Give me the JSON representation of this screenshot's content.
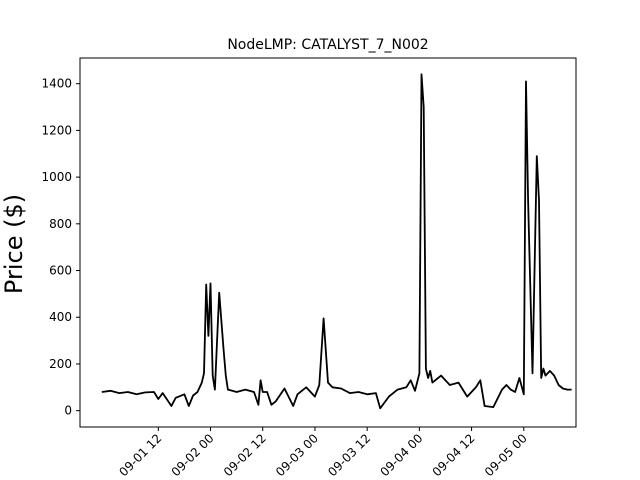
{
  "chart_data": {
    "type": "line",
    "title": "NodeLMP: CATALYST_7_N002",
    "xlabel": "",
    "ylabel": "Price ($)",
    "x_axis": "datetime",
    "xlim": [
      "2021-08-31T18:00",
      "2021-09-05T12:00"
    ],
    "ylim": [
      -70,
      1510
    ],
    "x_tick_labels": [
      "09-01 12",
      "09-02 00",
      "09-02 12",
      "09-03 00",
      "09-03 12",
      "09-04 00",
      "09-04 12",
      "09-05 00"
    ],
    "y_ticks": [
      0,
      200,
      400,
      600,
      800,
      1000,
      1200,
      1400
    ],
    "grid": false,
    "legend": "none",
    "line_color": "#000000",
    "series": [
      {
        "x": [
          "2021-08-31T23:00",
          "2021-09-01T01:00",
          "2021-09-01T03:00",
          "2021-09-01T05:00",
          "2021-09-01T07:00",
          "2021-09-01T09:00",
          "2021-09-01T11:00",
          "2021-09-01T12:00",
          "2021-09-01T13:00",
          "2021-09-01T15:00",
          "2021-09-01T16:00",
          "2021-09-01T18:00",
          "2021-09-01T19:00",
          "2021-09-01T20:00",
          "2021-09-01T21:00",
          "2021-09-01T22:00",
          "2021-09-01T22:30",
          "2021-09-01T23:00",
          "2021-09-01T23:30",
          "2021-09-02T00:00",
          "2021-09-02T00:30",
          "2021-09-02T01:00",
          "2021-09-02T02:00",
          "2021-09-02T03:00",
          "2021-09-02T03:30",
          "2021-09-02T04:00",
          "2021-09-02T05:00",
          "2021-09-02T06:00",
          "2021-09-02T08:00",
          "2021-09-02T10:00",
          "2021-09-02T11:00",
          "2021-09-02T11:30",
          "2021-09-02T12:00",
          "2021-09-02T13:00",
          "2021-09-02T14:00",
          "2021-09-02T15:00",
          "2021-09-02T17:00",
          "2021-09-02T19:00",
          "2021-09-02T20:00",
          "2021-09-02T22:00",
          "2021-09-03T00:00",
          "2021-09-03T01:00",
          "2021-09-03T02:00",
          "2021-09-03T03:00",
          "2021-09-03T04:00",
          "2021-09-03T06:00",
          "2021-09-03T08:00",
          "2021-09-03T10:00",
          "2021-09-03T12:00",
          "2021-09-03T14:00",
          "2021-09-03T15:00",
          "2021-09-03T17:00",
          "2021-09-03T19:00",
          "2021-09-03T21:00",
          "2021-09-03T22:00",
          "2021-09-03T23:00",
          "2021-09-04T00:00",
          "2021-09-04T00:30",
          "2021-09-04T01:00",
          "2021-09-04T01:30",
          "2021-09-04T02:00",
          "2021-09-04T02:30",
          "2021-09-04T03:00",
          "2021-09-04T05:00",
          "2021-09-04T07:00",
          "2021-09-04T09:00",
          "2021-09-04T11:00",
          "2021-09-04T13:00",
          "2021-09-04T14:00",
          "2021-09-04T15:00",
          "2021-09-04T17:00",
          "2021-09-04T19:00",
          "2021-09-04T20:00",
          "2021-09-04T21:00",
          "2021-09-04T22:00",
          "2021-09-04T23:00",
          "2021-09-05T00:00",
          "2021-09-05T00:30",
          "2021-09-05T01:00",
          "2021-09-05T02:00",
          "2021-09-05T03:00",
          "2021-09-05T03:30",
          "2021-09-05T04:00",
          "2021-09-05T04:30",
          "2021-09-05T05:00",
          "2021-09-05T06:00",
          "2021-09-05T07:00",
          "2021-09-05T08:00",
          "2021-09-05T09:00",
          "2021-09-05T10:00",
          "2021-09-05T11:00"
        ],
        "values": [
          80,
          85,
          75,
          80,
          70,
          78,
          80,
          50,
          75,
          20,
          55,
          70,
          20,
          65,
          80,
          120,
          160,
          540,
          320,
          545,
          150,
          90,
          505,
          260,
          150,
          90,
          85,
          80,
          90,
          80,
          25,
          130,
          80,
          80,
          25,
          40,
          95,
          20,
          70,
          100,
          60,
          110,
          395,
          120,
          100,
          95,
          75,
          80,
          70,
          75,
          10,
          60,
          90,
          100,
          130,
          85,
          160,
          1440,
          1300,
          180,
          140,
          170,
          120,
          150,
          110,
          120,
          60,
          100,
          130,
          20,
          15,
          90,
          110,
          90,
          80,
          140,
          70,
          1410,
          900,
          160,
          1090,
          900,
          140,
          180,
          150,
          170,
          150,
          110,
          95,
          90,
          90
        ]
      }
    ]
  }
}
